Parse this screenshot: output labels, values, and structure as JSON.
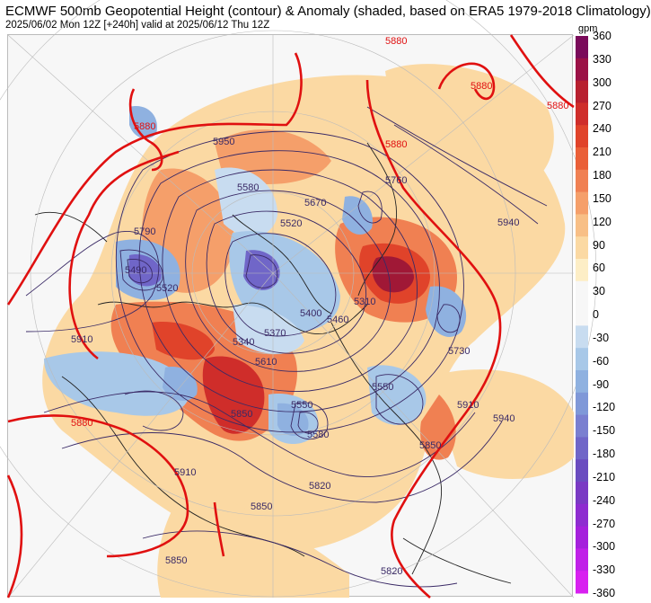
{
  "header": {
    "title": "ECMWF 500mb Geopotential Height (contour) & Anomaly (shaded, based on ERA5 1979-2018 Climatology)",
    "subtitle": "2025/06/02 Mon 12Z [+240h] valid at 2025/06/12 Thu 12Z"
  },
  "colorbar": {
    "unit": "gpm",
    "ticks": [
      "360",
      "330",
      "300",
      "270",
      "240",
      "210",
      "180",
      "150",
      "120",
      "90",
      "60",
      "30",
      "0",
      "-30",
      "-60",
      "-90",
      "-120",
      "-150",
      "-180",
      "-210",
      "-240",
      "-270",
      "-300",
      "-330",
      "-360"
    ],
    "colors": [
      "#7a0a5a",
      "#9b1146",
      "#b8202f",
      "#cf2d2a",
      "#e0432a",
      "#ea5f37",
      "#f08052",
      "#f59f6a",
      "#f8bf86",
      "#fbd9a3",
      "#fdeec6",
      "#f7f7f7",
      "#f7f7f7",
      "#c8dcf0",
      "#a8c8e8",
      "#8fb1e0",
      "#7f98d8",
      "#7a7fd0",
      "#7066c8",
      "#6a4cc0",
      "#7a3ac4",
      "#8e2cd0",
      "#a520dc",
      "#c020e8",
      "#d820f0"
    ]
  },
  "contour_labels": {
    "purple": [
      "5910",
      "5790",
      "5490",
      "5520",
      "5580",
      "5670",
      "5760",
      "5520",
      "5400",
      "5460",
      "5370",
      "5340",
      "5310",
      "5610",
      "5850",
      "5550",
      "5580",
      "5730",
      "5550",
      "5820",
      "5850",
      "5850",
      "5910",
      "5940",
      "5820",
      "5910",
      "5850",
      "5940",
      "5950"
    ],
    "red": [
      "5880",
      "5880",
      "5880",
      "5880",
      "5880",
      "5880"
    ]
  },
  "map": {
    "anomaly_colors": {
      "warm_light": "#fbd9a3",
      "warm_mid": "#f59f6a",
      "warm_strong": "#e0432a",
      "warm_max": "#a01836",
      "cool_light": "#c8dcf0",
      "cool_mid": "#8fb1e0",
      "cool_strong": "#7066c8"
    },
    "contour_color": "#3a2a66",
    "highlight_contour_color": "#e01010"
  }
}
